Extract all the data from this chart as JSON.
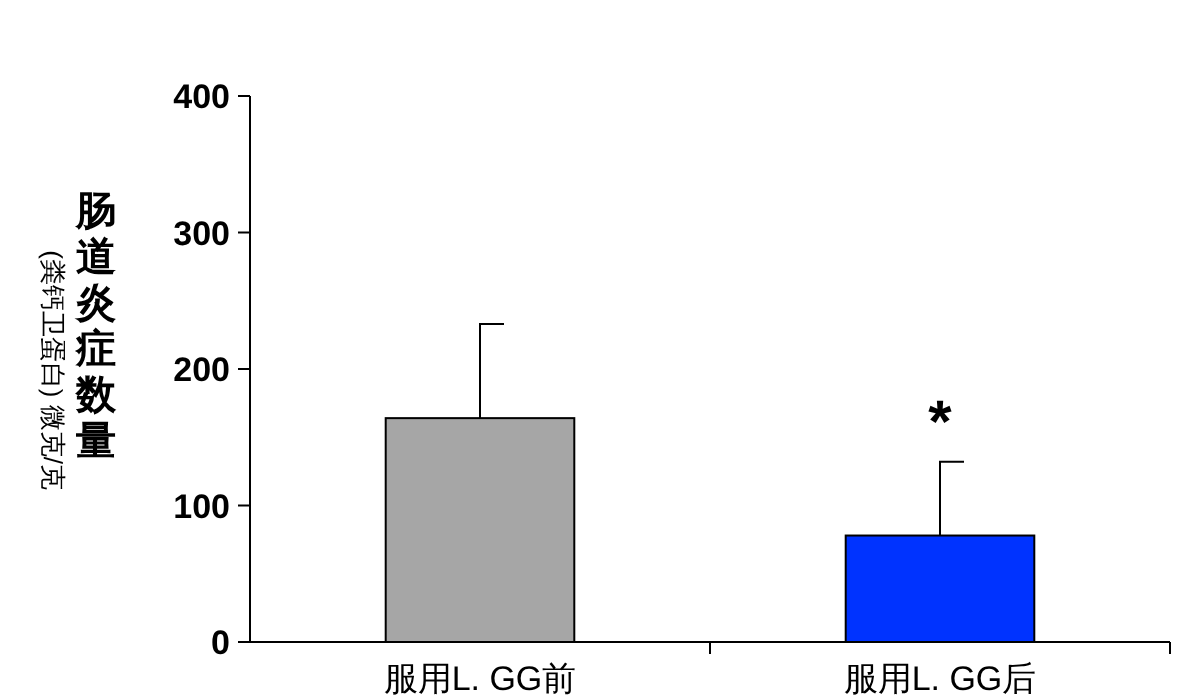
{
  "chart_data": {
    "type": "bar",
    "ylabel": "肠道炎症数量\n(粪钙卫蛋白) 微克/克",
    "categories": [
      "服用L. GG前",
      "服用L. GG后"
    ],
    "values": [
      164,
      78
    ],
    "colors": [
      "#a6a6a6",
      "#0033ff"
    ],
    "errors": [
      [
        164,
        233
      ],
      [
        78,
        132
      ]
    ],
    "ylim": [
      0,
      400
    ],
    "yticks": [
      0,
      100,
      200,
      300,
      400
    ],
    "grid": false,
    "annotations": [
      "*"
    ]
  }
}
